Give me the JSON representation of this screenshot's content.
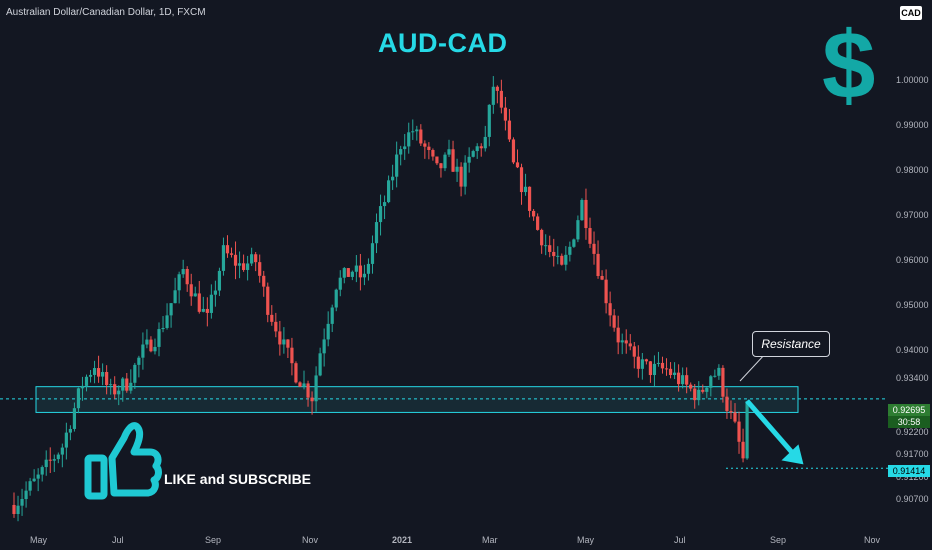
{
  "header": {
    "symbol": "Australian Dollar/Canadian Dollar, 1D, FXCM",
    "currency": "CAD"
  },
  "overlay": {
    "title": "AUD-CAD",
    "dollar_glyph": "$",
    "callout": "Resistance",
    "cta": "LIKE and SUBSCRIBE"
  },
  "badges": {
    "current_price": "0.92695",
    "countdown": "30:58",
    "target_price": "0.91414"
  },
  "colors": {
    "background": "#131722",
    "up": "#26a69a",
    "down": "#ef5350",
    "accent": "#26d9e6",
    "zone_fill": "#1c3b44",
    "dollar": "#13a8a6"
  },
  "chart_data": {
    "type": "candlestick",
    "interval": "1D",
    "x_ticks": [
      "May",
      "Jul",
      "Sep",
      "Nov",
      "2021",
      "Mar",
      "May",
      "Jul",
      "Sep",
      "Nov"
    ],
    "y_ticks": [
      "1.00000",
      "0.99000",
      "0.98000",
      "0.97000",
      "0.96000",
      "0.95000",
      "0.94000",
      "0.93400",
      "0.92200",
      "0.91700",
      "0.91200",
      "0.90700"
    ],
    "ylim": [
      0.904,
      1.005
    ],
    "price_path": [
      [
        0,
        0.906
      ],
      [
        6,
        0.912
      ],
      [
        12,
        0.919
      ],
      [
        17,
        0.933
      ],
      [
        20,
        0.937
      ],
      [
        24,
        0.931
      ],
      [
        28,
        0.933
      ],
      [
        32,
        0.94
      ],
      [
        36,
        0.944
      ],
      [
        40,
        0.953
      ],
      [
        42,
        0.958
      ],
      [
        45,
        0.952
      ],
      [
        48,
        0.947
      ],
      [
        52,
        0.962
      ],
      [
        56,
        0.959
      ],
      [
        60,
        0.96
      ],
      [
        63,
        0.95
      ],
      [
        67,
        0.941
      ],
      [
        70,
        0.935
      ],
      [
        74,
        0.93
      ],
      [
        76,
        0.94
      ],
      [
        80,
        0.955
      ],
      [
        84,
        0.958
      ],
      [
        87,
        0.956
      ],
      [
        90,
        0.968
      ],
      [
        93,
        0.976
      ],
      [
        96,
        0.986
      ],
      [
        99,
        0.989
      ],
      [
        102,
        0.985
      ],
      [
        105,
        0.98
      ],
      [
        108,
        0.983
      ],
      [
        111,
        0.978
      ],
      [
        114,
        0.984
      ],
      [
        117,
        0.987
      ],
      [
        119,
        0.999
      ],
      [
        121,
        0.994
      ],
      [
        124,
        0.981
      ],
      [
        127,
        0.975
      ],
      [
        130,
        0.967
      ],
      [
        133,
        0.962
      ],
      [
        136,
        0.958
      ],
      [
        138,
        0.963
      ],
      [
        141,
        0.973
      ],
      [
        144,
        0.962
      ],
      [
        147,
        0.952
      ],
      [
        150,
        0.943
      ],
      [
        154,
        0.938
      ],
      [
        158,
        0.936
      ],
      [
        162,
        0.936
      ],
      [
        166,
        0.933
      ],
      [
        170,
        0.93
      ],
      [
        173,
        0.935
      ],
      [
        175,
        0.935
      ],
      [
        177,
        0.928
      ],
      [
        179,
        0.923
      ],
      [
        181,
        0.916
      ],
      [
        182,
        0.927
      ]
    ],
    "resistance_zone": [
      0.9265,
      0.9322
    ],
    "resistance_level": 0.9295,
    "target_level": 0.91414,
    "projection": {
      "from_index": 182,
      "to_index": 196,
      "to_price": 0.915
    },
    "x_max_index": 215
  }
}
